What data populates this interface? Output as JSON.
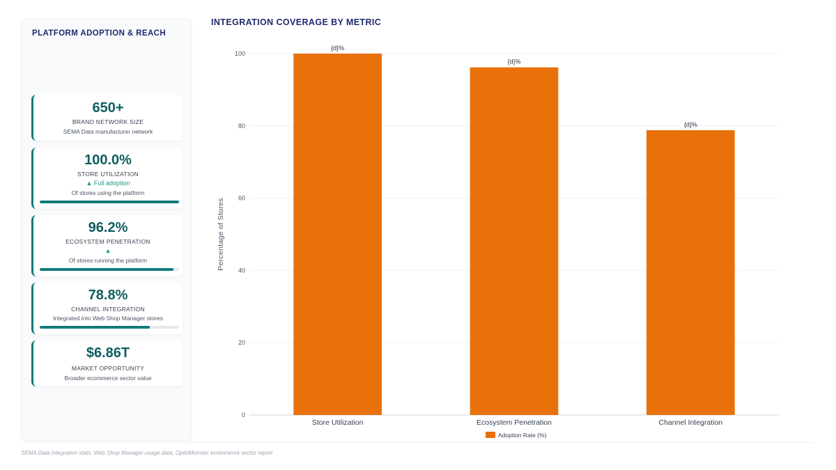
{
  "panel": {
    "title": "PLATFORM ADOPTION & REACH",
    "cards": [
      {
        "value": "650+",
        "label": "BRAND NETWORK SIZE",
        "desc": "SEMA Data manufacturer network"
      },
      {
        "value": "100.0%",
        "label": "STORE UTILIZATION",
        "trend": "▲ Full adoption",
        "desc": "Of stores using the platform",
        "progress": 1.0
      },
      {
        "value": "96.2%",
        "label": "ECOSYSTEM PENETRATION",
        "trend": "▲",
        "desc": "Of stores running the platform",
        "progress": 0.962
      },
      {
        "value": "78.8%",
        "label": "CHANNEL INTEGRATION",
        "desc": "Integrated into Web Shop Manager stores",
        "progress": 0.788
      },
      {
        "value": "$6.86T",
        "label": "MARKET OPPORTUNITY",
        "desc": "Broader ecommerce sector value"
      }
    ]
  },
  "chart_data": {
    "type": "bar",
    "title": "INTEGRATION COVERAGE BY METRIC",
    "categories": [
      "Store Utilization",
      "Ecosystem Penetration",
      "Channel Integration"
    ],
    "series": [
      {
        "name": "Adoption Rate (%)",
        "values": [
          100.0,
          96.2,
          78.8
        ]
      }
    ],
    "data_labels": [
      "{d}%",
      "{d}%",
      "{d}%"
    ],
    "ylabel": "Percentage of Stores",
    "xlabel": "",
    "ylim": [
      0,
      100
    ],
    "yticks": [
      0,
      20,
      40,
      60,
      80,
      100
    ],
    "grid": true,
    "legend": "bottom-center",
    "bar_color": "#e8710a"
  },
  "source": "SEMA Data integration stats, Web Shop Manager usage data, OptinMonster ecommerce sector report"
}
